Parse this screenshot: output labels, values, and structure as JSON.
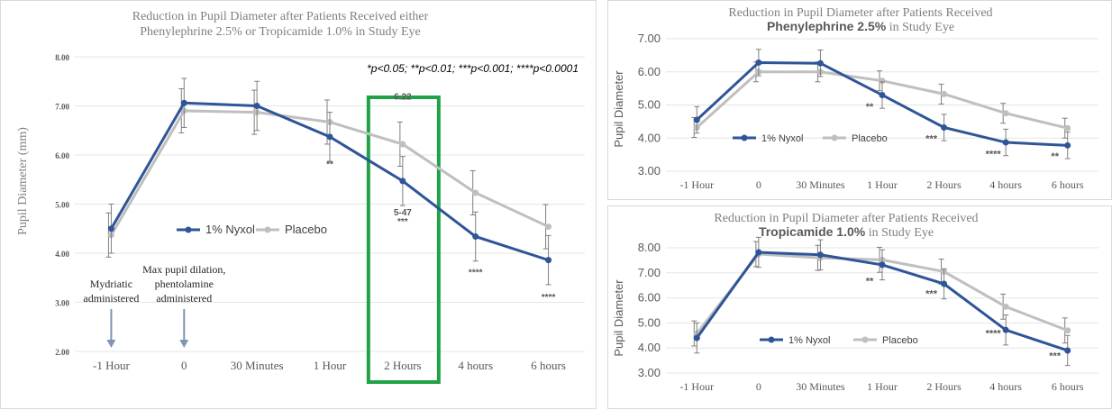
{
  "chart_data": [
    {
      "type": "line",
      "title_line1": "Reduction in Pupil Diameter after Patients Received either",
      "title_line2": "Phenylephrine 2.5% or Tropicamide 1.0% in Study Eye",
      "ylabel": "Pupil Diameter (mm)",
      "xlabel": "",
      "categories": [
        "-1 Hour",
        "0",
        "30 Minutes",
        "1 Hour",
        "2 Hours",
        "4 hours",
        "6 hours"
      ],
      "ylim": [
        2.0,
        8.0
      ],
      "yticks": [
        "2.00",
        "3.00",
        "4.00",
        "5.00",
        "6.00",
        "7.00",
        "8.00"
      ],
      "grid": true,
      "legend_position": "center",
      "significance_note": "*p<0.05; **p<0.01; ***p<0.001; ****p<0.0001",
      "series": [
        {
          "name": "1% Nyxol",
          "color": "#2e5597",
          "values": [
            4.5,
            7.06,
            7.0,
            6.37,
            5.47,
            4.34,
            3.86
          ],
          "err": [
            0.5,
            0.5,
            0.5,
            0.5,
            0.5,
            0.5,
            0.5
          ]
        },
        {
          "name": "Placebo",
          "color": "#bfbfbf",
          "values": [
            4.37,
            6.9,
            6.87,
            6.67,
            6.22,
            5.23,
            4.54
          ],
          "err": [
            0.45,
            0.45,
            0.45,
            0.45,
            0.45,
            0.45,
            0.45
          ]
        }
      ],
      "annotations": [
        {
          "text": "**",
          "cat": 3,
          "y": 5.75
        },
        {
          "text": "6.22",
          "cat": 4,
          "y": 7.13
        },
        {
          "text": "5-47",
          "cat": 4,
          "y": 4.77
        },
        {
          "text": "***",
          "cat": 4,
          "y": 4.59
        },
        {
          "text": "****",
          "cat": 5,
          "y": 3.55
        },
        {
          "text": "****",
          "cat": 6,
          "y": 3.05
        }
      ],
      "event_labels": [
        {
          "lines": [
            "Mydriatic",
            "administered"
          ],
          "cat": 0
        },
        {
          "lines": [
            "Max pupil dilation,",
            "phentolamine",
            "administered"
          ],
          "cat": 1
        }
      ],
      "highlight_category": 4,
      "highlight_color": "#21a246"
    },
    {
      "type": "line",
      "title_line1": "Reduction in Pupil Diameter after Patients Received",
      "title_bold": "Phenylephrine 2.5%",
      "title_rest": " in Study Eye",
      "ylabel": "Pupil Diameter",
      "categories": [
        "-1 Hour",
        "0",
        "30 Minutes",
        "1 Hour",
        "2 Hours",
        "4 hours",
        "6 hours"
      ],
      "ylim": [
        3.0,
        7.0
      ],
      "yticks": [
        "3.00",
        "4.00",
        "5.00",
        "6.00",
        "7.00"
      ],
      "grid": true,
      "legend_position": "center",
      "series": [
        {
          "name": "1% Nyxol",
          "color": "#2e5597",
          "values": [
            4.55,
            6.28,
            6.26,
            5.3,
            4.32,
            3.87,
            3.78
          ],
          "err": [
            0.4,
            0.4,
            0.4,
            0.4,
            0.4,
            0.4,
            0.4
          ]
        },
        {
          "name": "Placebo",
          "color": "#bfbfbf",
          "values": [
            4.32,
            6.0,
            6.0,
            5.73,
            5.33,
            4.75,
            4.3
          ],
          "err": [
            0.3,
            0.3,
            0.3,
            0.3,
            0.3,
            0.3,
            0.3
          ]
        }
      ],
      "annotations": [
        {
          "text": "**",
          "cat": 3,
          "y": 4.85
        },
        {
          "text": "***",
          "cat": 4,
          "y": 3.88
        },
        {
          "text": "****",
          "cat": 5,
          "y": 3.42
        },
        {
          "text": "**",
          "cat": 6,
          "y": 3.35
        }
      ]
    },
    {
      "type": "line",
      "title_line1": "Reduction in Pupil Diameter after Patients Received",
      "title_bold": "Tropicamide 1.0%",
      "title_rest": " in Study Eye",
      "ylabel": "Pupil Diameter",
      "categories": [
        "-1 Hour",
        "0",
        "30 Minutes",
        "1 Hour",
        "2 Hours",
        "4 hours",
        "6 hours"
      ],
      "ylim": [
        3.0,
        8.0
      ],
      "yticks": [
        "3.00",
        "4.00",
        "5.00",
        "6.00",
        "7.00",
        "8.00"
      ],
      "grid": true,
      "legend_position": "center",
      "series": [
        {
          "name": "1% Nyxol",
          "color": "#2e5597",
          "values": [
            4.4,
            7.82,
            7.72,
            7.32,
            6.56,
            4.72,
            3.9
          ],
          "err": [
            0.6,
            0.6,
            0.6,
            0.6,
            0.6,
            0.6,
            0.6
          ]
        },
        {
          "name": "Placebo",
          "color": "#bfbfbf",
          "values": [
            4.58,
            7.75,
            7.6,
            7.52,
            7.05,
            5.65,
            4.7
          ],
          "err": [
            0.5,
            0.5,
            0.5,
            0.5,
            0.5,
            0.5,
            0.5
          ]
        }
      ],
      "annotations": [
        {
          "text": "**",
          "cat": 3,
          "y": 6.55
        },
        {
          "text": "***",
          "cat": 4,
          "y": 6.04
        },
        {
          "text": "****",
          "cat": 5,
          "y": 4.45
        },
        {
          "text": "***",
          "cat": 6,
          "y": 3.55
        }
      ]
    }
  ]
}
